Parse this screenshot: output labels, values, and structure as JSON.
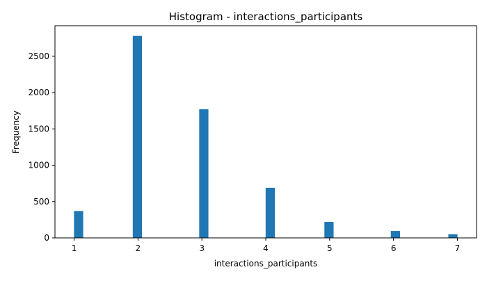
{
  "chart_data": {
    "type": "bar",
    "title": "Histogram - interactions_participants",
    "xlabel": "interactions_participants",
    "ylabel": "Frequency",
    "x_ticks": [
      1,
      2,
      3,
      4,
      5,
      6,
      7
    ],
    "y_ticks": [
      0,
      500,
      1000,
      1500,
      2000,
      2500
    ],
    "xlim": [
      0.7,
      7.3
    ],
    "ylim": [
      0,
      2920
    ],
    "bar_width": 0.144,
    "bins": [
      {
        "x": 1.07,
        "value": 370
      },
      {
        "x": 1.99,
        "value": 2780
      },
      {
        "x": 3.03,
        "value": 1770
      },
      {
        "x": 4.07,
        "value": 690
      },
      {
        "x": 4.99,
        "value": 220
      },
      {
        "x": 6.03,
        "value": 95
      },
      {
        "x": 6.93,
        "value": 50
      }
    ],
    "bar_color": "#1f77b4",
    "grid": false,
    "legend": false
  }
}
